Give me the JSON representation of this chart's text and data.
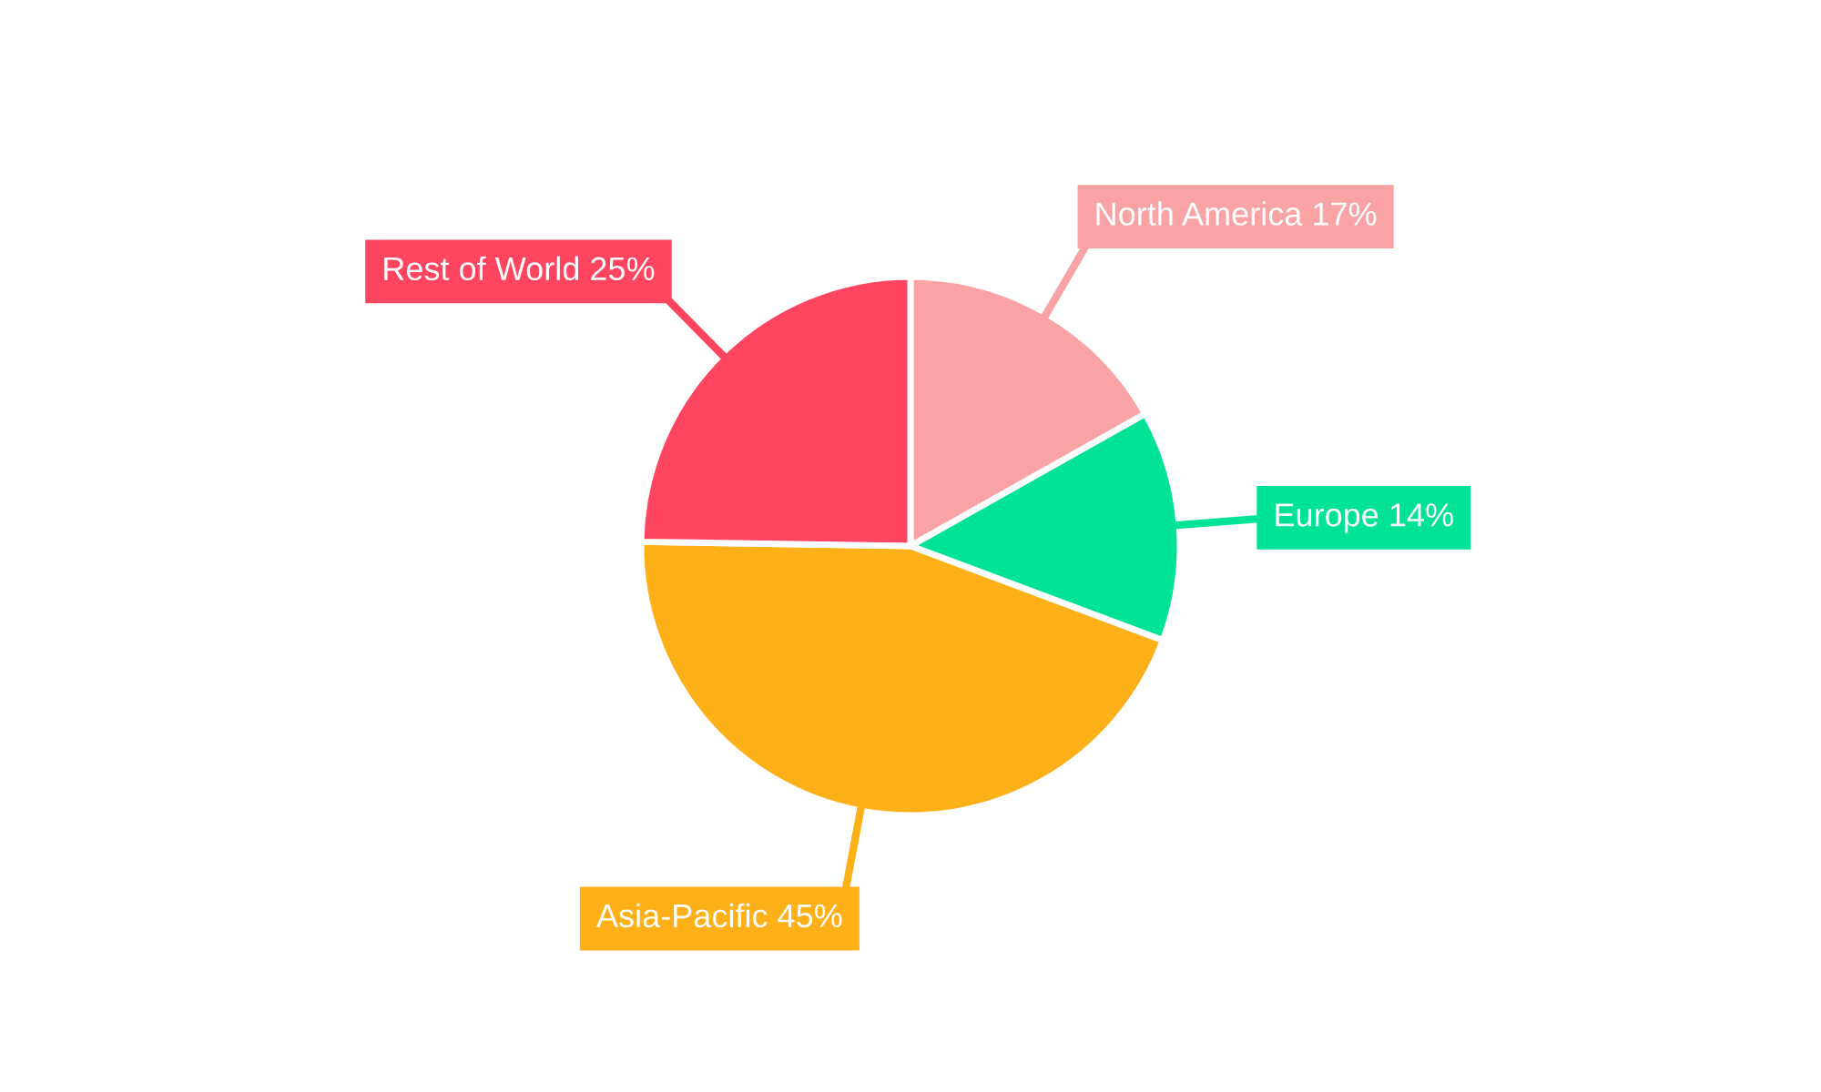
{
  "chart_data": {
    "type": "pie",
    "categories": [
      "North America",
      "Europe",
      "Asia-Pacific",
      "Rest of World"
    ],
    "values": [
      17,
      14,
      45,
      25
    ],
    "value_labels": [
      "17%",
      "14%",
      "45%",
      "25%"
    ],
    "colors": [
      "#f9a3a4",
      "#00e396",
      "#feb019",
      "#ff4560"
    ],
    "legend": false
  }
}
